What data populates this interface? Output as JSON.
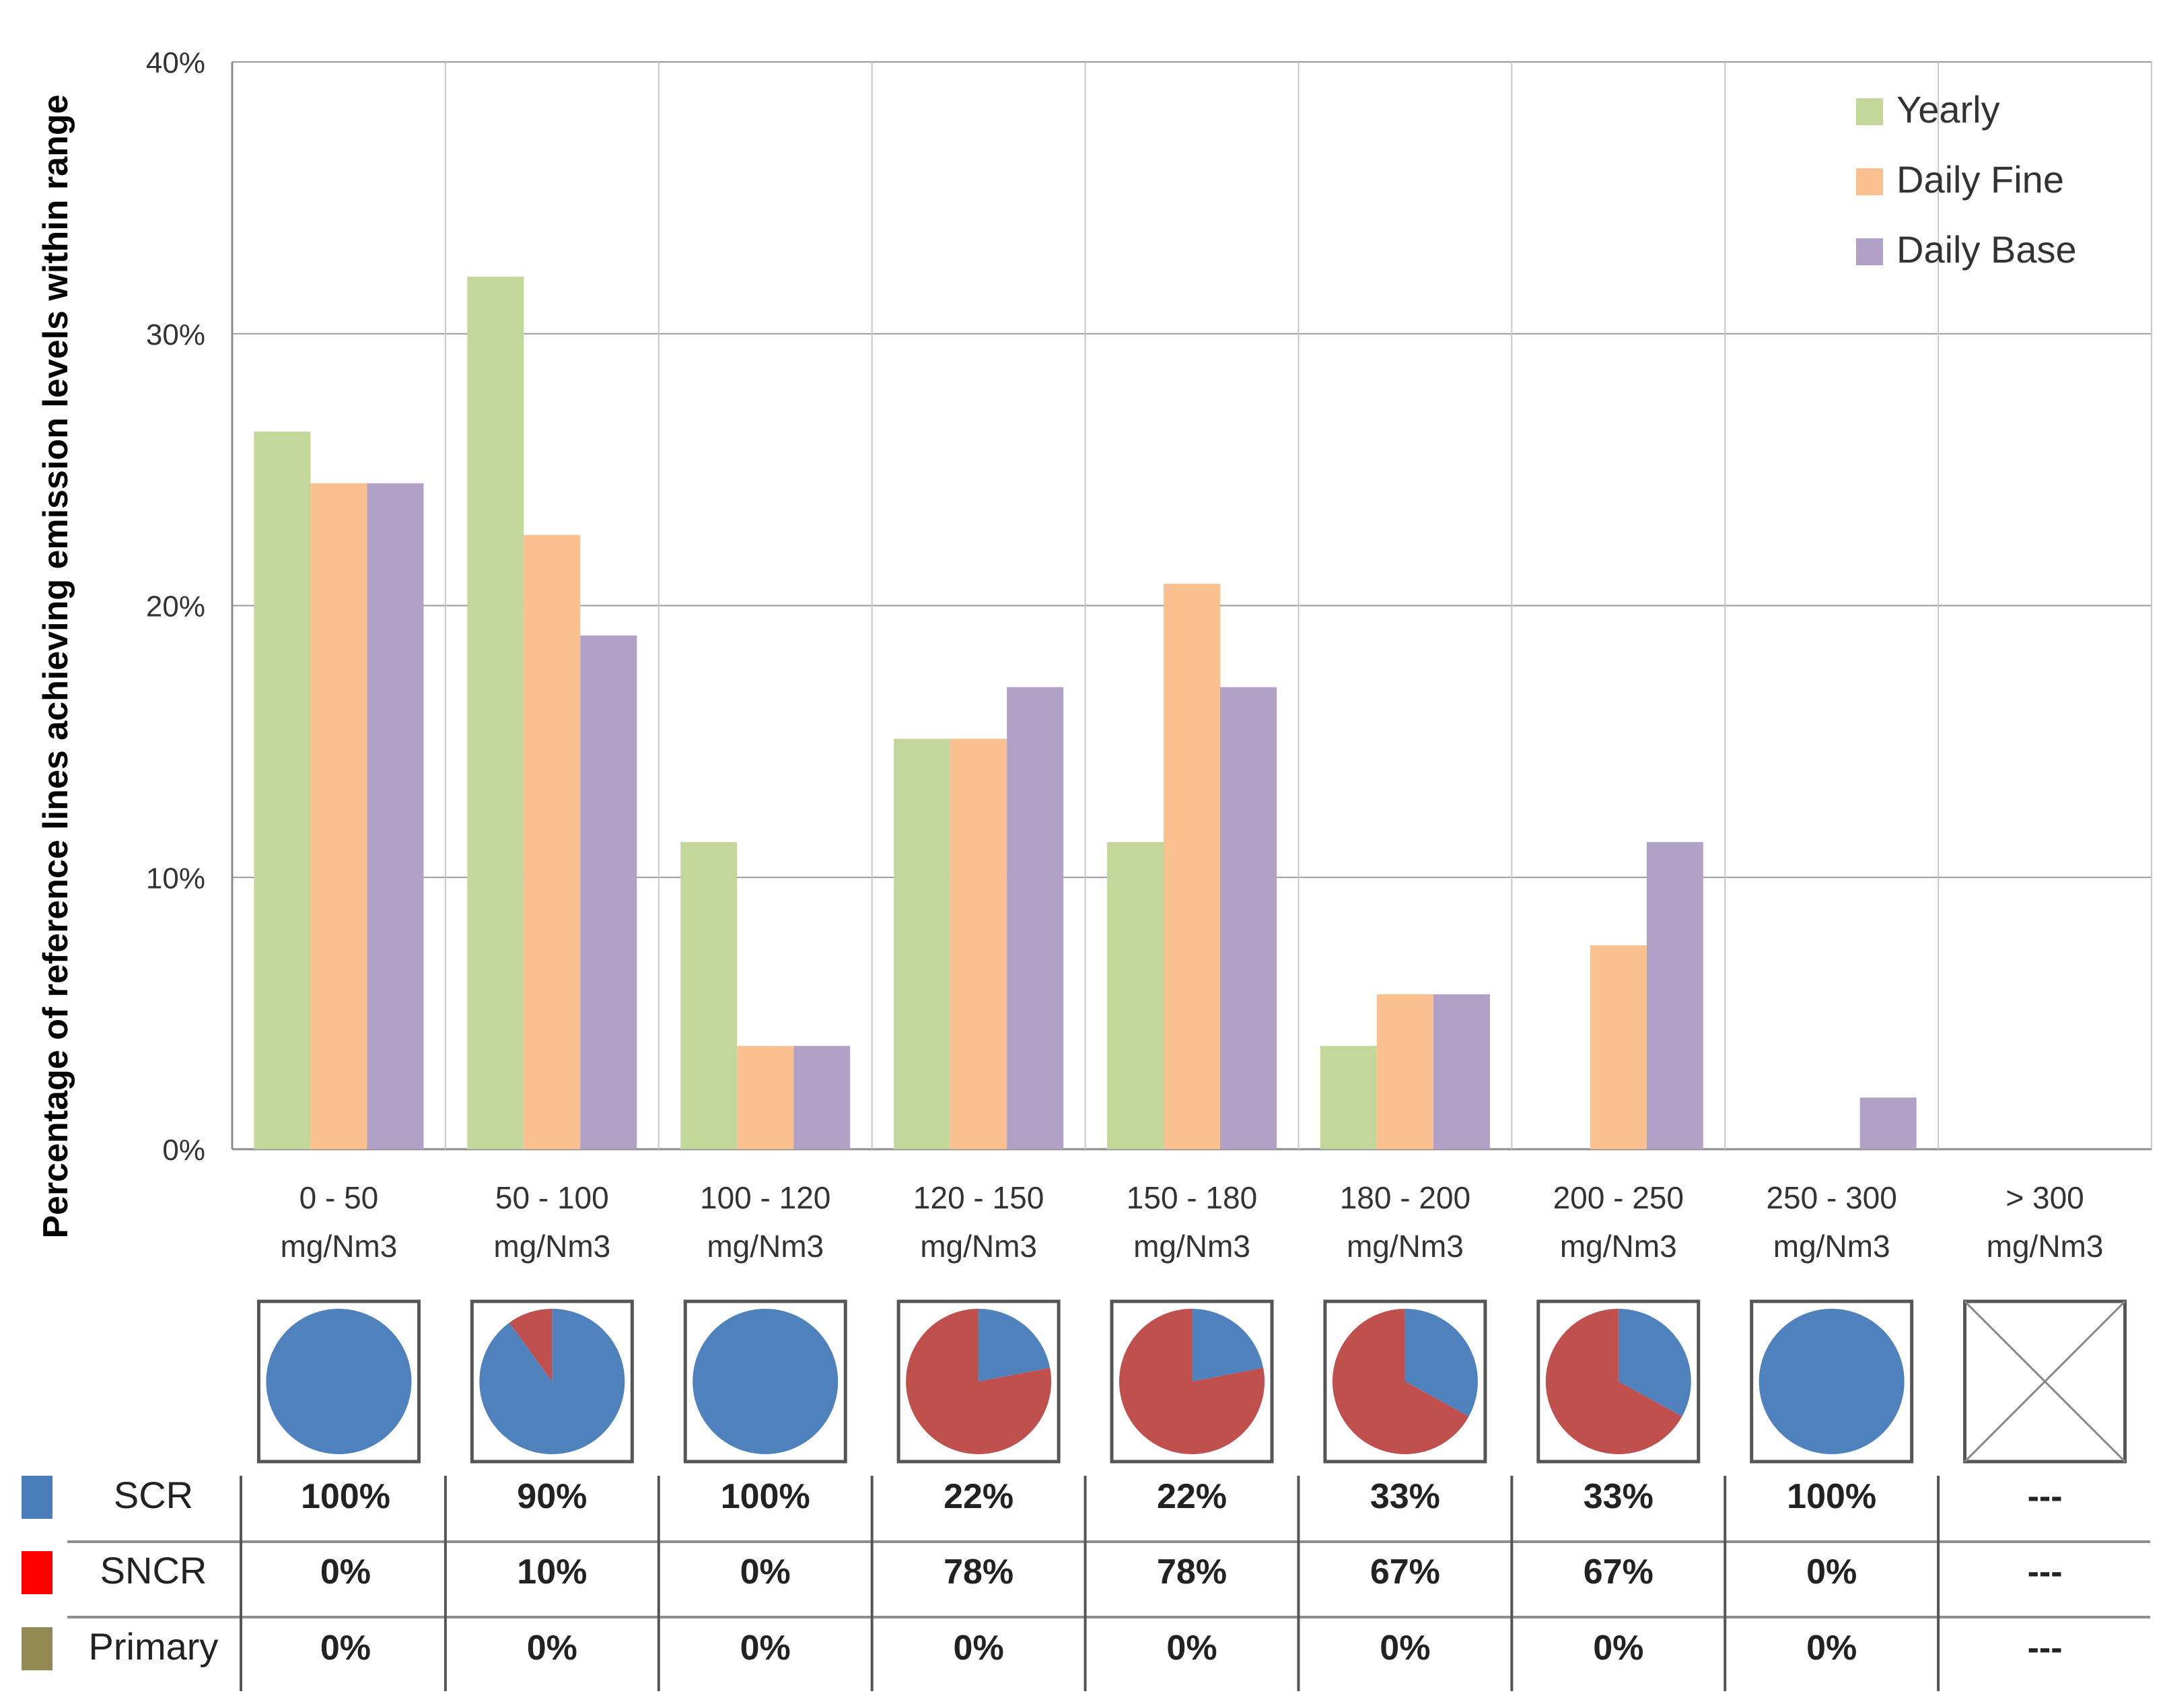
{
  "chart_data": {
    "type": "bar",
    "ylabel": "Percentage of  reference lines achieving emission levels within range",
    "ylim": [
      0,
      40
    ],
    "y_ticks": [
      "0%",
      "10%",
      "20%",
      "30%",
      "40%"
    ],
    "categories": [
      [
        "0 - 50",
        "mg/Nm3"
      ],
      [
        "50 - 100",
        "mg/Nm3"
      ],
      [
        "100 - 120",
        "mg/Nm3"
      ],
      [
        "120 - 150",
        "mg/Nm3"
      ],
      [
        "150 - 180",
        "mg/Nm3"
      ],
      [
        "180 - 200",
        "mg/Nm3"
      ],
      [
        "200 - 250",
        "mg/Nm3"
      ],
      [
        "250 - 300",
        "mg/Nm3"
      ],
      [
        "> 300",
        "mg/Nm3"
      ]
    ],
    "series": [
      {
        "name": "Yearly",
        "color": "#c4d79b",
        "values": [
          26.4,
          32.1,
          11.3,
          15.1,
          11.3,
          3.8,
          0,
          0,
          0
        ]
      },
      {
        "name": "Daily Fine",
        "color": "#fac090",
        "values": [
          24.5,
          22.6,
          3.8,
          15.1,
          20.8,
          5.7,
          7.5,
          0,
          0
        ]
      },
      {
        "name": "Daily Base",
        "color": "#b2a1c7",
        "values": [
          24.5,
          18.9,
          3.8,
          17.0,
          17.0,
          5.7,
          11.3,
          1.9,
          0
        ]
      }
    ],
    "legend_position": "top-right",
    "pies": [
      {
        "scr": 100,
        "sncr": 0
      },
      {
        "scr": 90,
        "sncr": 10
      },
      {
        "scr": 100,
        "sncr": 0
      },
      {
        "scr": 22,
        "sncr": 78
      },
      {
        "scr": 22,
        "sncr": 78
      },
      {
        "scr": 33,
        "sncr": 67
      },
      {
        "scr": 33,
        "sncr": 67
      },
      {
        "scr": 100,
        "sncr": 0
      },
      null
    ],
    "pie_colors": {
      "scr": "#4f81bd",
      "sncr": "#c0504d"
    },
    "table": {
      "rows": [
        {
          "label": "SCR",
          "color": "#4a7ebb",
          "values": [
            "100%",
            "90%",
            "100%",
            "22%",
            "22%",
            "33%",
            "33%",
            "100%",
            "---"
          ]
        },
        {
          "label": "SNCR",
          "color": "#ff0000",
          "values": [
            "0%",
            "10%",
            "0%",
            "78%",
            "78%",
            "67%",
            "67%",
            "0%",
            "---"
          ]
        },
        {
          "label": "Primary",
          "color": "#938953",
          "values": [
            "0%",
            "0%",
            "0%",
            "0%",
            "0%",
            "0%",
            "0%",
            "0%",
            "---"
          ]
        }
      ]
    }
  }
}
